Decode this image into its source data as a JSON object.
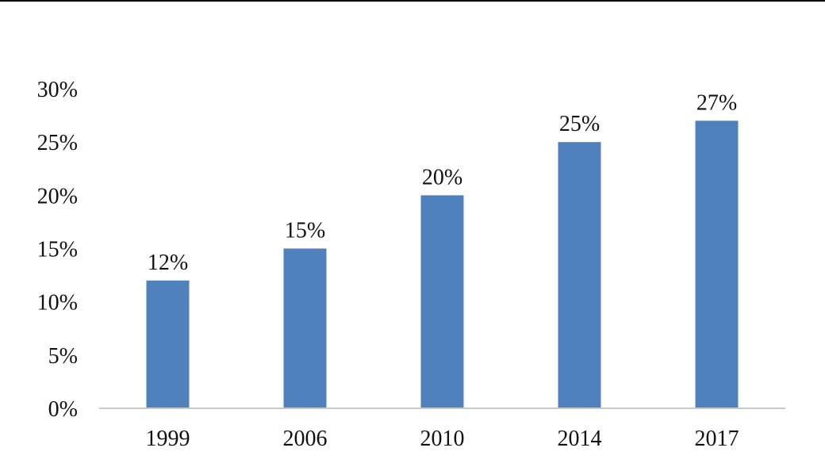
{
  "chart_data": {
    "type": "bar",
    "title": "",
    "xlabel": "",
    "ylabel": "",
    "categories": [
      "1999",
      "2006",
      "2010",
      "2014",
      "2017"
    ],
    "values": [
      12,
      15,
      20,
      25,
      27
    ],
    "value_labels": [
      "12%",
      "15%",
      "20%",
      "25%",
      "27%"
    ],
    "ylim": [
      0,
      30
    ],
    "yticks": [
      0,
      5,
      10,
      15,
      20,
      25,
      30
    ],
    "ytick_labels": [
      "0%",
      "5%",
      "10%",
      "15%",
      "20%",
      "25%",
      "30%"
    ],
    "grid": false,
    "legend": "none",
    "colors": {
      "bar": "#4f81bd",
      "axis": "#c8c8c8",
      "top_rule": "#000000",
      "text": "#111111"
    }
  }
}
